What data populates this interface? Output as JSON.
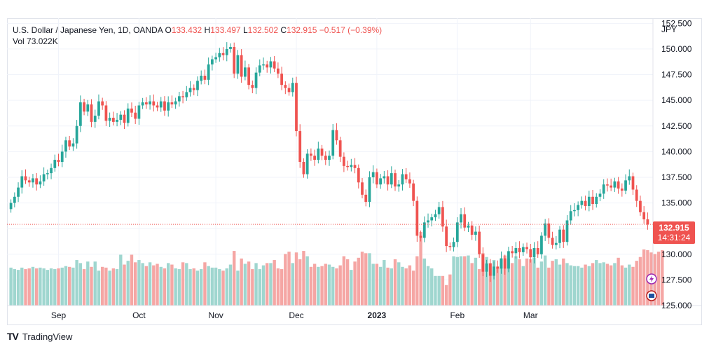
{
  "legend": {
    "symbol": "U.S. Dollar / Japanese Yen, 1D, OANDA",
    "o_label": "O",
    "o_val": "133.432",
    "h_label": "H",
    "h_val": "133.497",
    "l_label": "L",
    "l_val": "132.502",
    "c_label": "C",
    "c_val": "132.915",
    "change": "−0.517 (−0.39%)",
    "vol_label": "Vol",
    "vol_val": "73.022K"
  },
  "axis": {
    "unit": "JPY"
  },
  "price_tag": {
    "price": "132.915",
    "countdown": "14:31:24"
  },
  "brand": {
    "name": "TradingView",
    "mark": "TV"
  },
  "colors": {
    "up": "#26a69a",
    "down": "#ef5350",
    "vol_up": "#9fd6cf",
    "vol_down": "#f5a6a4",
    "grid": "#f0f3fa"
  },
  "chart_data": {
    "type": "candlestick",
    "y_ticks": [
      "152.500",
      "150.000",
      "147.500",
      "145.000",
      "142.500",
      "140.000",
      "137.500",
      "135.000",
      "132.500",
      "130.000",
      "127.500",
      "125.000"
    ],
    "ylim": [
      125.0,
      153.0
    ],
    "last_close": 132.915,
    "x_ticks": [
      {
        "label": "Sep",
        "date": "2022-09-01"
      },
      {
        "label": "Oct",
        "date": "2022-10-01"
      },
      {
        "label": "Nov",
        "date": "2022-11-01"
      },
      {
        "label": "Dec",
        "date": "2022-12-01"
      },
      {
        "label": "2023",
        "date": "2023-01-01"
      },
      {
        "label": "Feb",
        "date": "2023-02-01"
      },
      {
        "label": "Mar",
        "date": "2023-03-01"
      }
    ],
    "closes": [
      135.0,
      135.6,
      136.5,
      137.6,
      137.2,
      137.0,
      137.4,
      136.8,
      137.1,
      137.8,
      137.9,
      138.4,
      139.2,
      139.0,
      140.0,
      141.1,
      140.5,
      140.8,
      142.5,
      144.8,
      143.9,
      144.6,
      142.9,
      143.5,
      144.9,
      144.5,
      143.0,
      143.3,
      142.9,
      143.1,
      143.6,
      142.8,
      144.2,
      143.8,
      143.2,
      144.5,
      144.8,
      144.6,
      144.9,
      144.5,
      144.3,
      144.9,
      144.0,
      144.8,
      144.6,
      144.9,
      145.4,
      145.3,
      145.8,
      146.2,
      146.0,
      146.9,
      147.4,
      147.0,
      148.5,
      149.0,
      149.2,
      149.6,
      149.4,
      150.0,
      150.2,
      147.6,
      149.4,
      147.3,
      148.2,
      146.5,
      146.2,
      147.7,
      148.4,
      148.5,
      148.2,
      148.8,
      148.1,
      147.6,
      146.5,
      146.2,
      145.8,
      146.7,
      142.0,
      139.0,
      137.8,
      139.8,
      139.6,
      139.2,
      140.3,
      139.6,
      139.2,
      139.6,
      142.1,
      141.1,
      139.5,
      138.6,
      138.5,
      138.7,
      138.4,
      137.0,
      135.8,
      135.1,
      137.5,
      138.0,
      136.8,
      137.4,
      137.6,
      136.8,
      137.9,
      136.6,
      136.8,
      137.8,
      137.3,
      136.9,
      135.2,
      131.8,
      131.6,
      133.1,
      133.3,
      133.6,
      133.9,
      134.6,
      132.7,
      130.8,
      130.7,
      131.2,
      133.1,
      133.9,
      132.6,
      132.8,
      131.9,
      132.2,
      130.0,
      128.3,
      129.1,
      127.9,
      128.8,
      128.6,
      129.6,
      128.6,
      130.3,
      130.1,
      130.6,
      130.2,
      130.7,
      130.5,
      129.7,
      130.6,
      130.0,
      131.8,
      133.0,
      131.6,
      130.9,
      131.1,
      132.4,
      131.2,
      133.3,
      134.2,
      134.3,
      134.8,
      135.2,
      134.7,
      135.6,
      134.9,
      135.6,
      135.9,
      136.8,
      136.7,
      136.5,
      137.1,
      136.4,
      136.2,
      137.2,
      137.6,
      136.3,
      135.2,
      134.1,
      133.4,
      132.9
    ],
    "volumes": [
      50,
      48,
      47,
      50,
      48,
      49,
      51,
      49,
      50,
      49,
      47,
      49,
      48,
      49,
      50,
      52,
      51,
      50,
      60,
      56,
      48,
      58,
      51,
      58,
      46,
      51,
      50,
      46,
      49,
      48,
      67,
      54,
      59,
      67,
      57,
      60,
      56,
      52,
      57,
      53,
      55,
      51,
      49,
      56,
      54,
      49,
      48,
      57,
      56,
      48,
      49,
      46,
      48,
      57,
      52,
      50,
      50,
      48,
      46,
      49,
      54,
      72,
      46,
      62,
      55,
      58,
      48,
      56,
      48,
      53,
      56,
      56,
      60,
      49,
      48,
      68,
      71,
      56,
      70,
      61,
      72,
      65,
      51,
      55,
      51,
      52,
      55,
      54,
      51,
      49,
      53,
      65,
      61,
      47,
      58,
      63,
      71,
      69,
      69,
      55,
      55,
      51,
      60,
      50,
      49,
      61,
      57,
      51,
      49,
      53,
      46,
      65,
      97,
      62,
      52,
      49,
      39,
      39,
      39,
      27,
      41,
      65,
      64,
      65,
      65,
      66,
      56,
      63,
      48,
      69,
      64,
      56,
      60,
      50,
      62,
      66,
      62,
      56,
      65,
      61,
      52,
      62,
      61,
      63,
      50,
      58,
      66,
      50,
      59,
      61,
      54,
      62,
      56,
      53,
      52,
      52,
      50,
      54,
      52,
      56,
      60,
      56,
      57,
      55,
      53,
      56,
      63,
      53,
      50,
      54,
      51,
      59,
      64,
      74,
      73,
      70,
      68,
      71,
      73
    ],
    "volume_scale_label": ""
  }
}
